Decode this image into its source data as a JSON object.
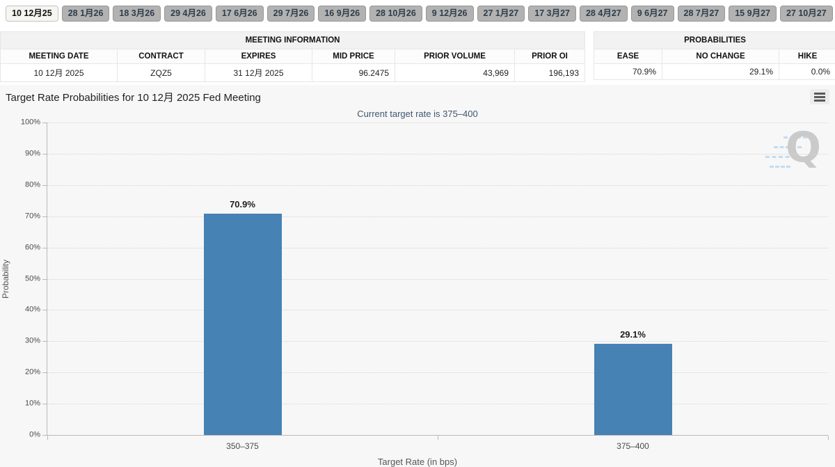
{
  "tabs": {
    "items": [
      {
        "label": "10 12月25",
        "active": true
      },
      {
        "label": "28 1月26",
        "active": false
      },
      {
        "label": "18 3月26",
        "active": false
      },
      {
        "label": "29 4月26",
        "active": false
      },
      {
        "label": "17 6月26",
        "active": false
      },
      {
        "label": "29 7月26",
        "active": false
      },
      {
        "label": "16 9月26",
        "active": false
      },
      {
        "label": "28 10月26",
        "active": false
      },
      {
        "label": "9 12月26",
        "active": false
      },
      {
        "label": "27 1月27",
        "active": false
      },
      {
        "label": "17 3月27",
        "active": false
      },
      {
        "label": "28 4月27",
        "active": false
      },
      {
        "label": "9 6月27",
        "active": false
      },
      {
        "label": "28 7月27",
        "active": false
      },
      {
        "label": "15 9月27",
        "active": false
      },
      {
        "label": "27 10月27",
        "active": false
      }
    ]
  },
  "meeting_info": {
    "title": "MEETING INFORMATION",
    "columns": [
      "MEETING DATE",
      "CONTRACT",
      "EXPIRES",
      "MID PRICE",
      "PRIOR VOLUME",
      "PRIOR OI"
    ],
    "row": {
      "meeting_date": "10 12月 2025",
      "contract": "ZQZ5",
      "expires": "31 12月 2025",
      "mid_price": "96.2475",
      "prior_volume": "43,969",
      "prior_oi": "196,193"
    }
  },
  "probabilities": {
    "title": "PROBABILITIES",
    "columns": [
      "EASE",
      "NO CHANGE",
      "HIKE"
    ],
    "row": {
      "ease": "70.9%",
      "no_change": "29.1%",
      "hike": "0.0%"
    }
  },
  "chart": {
    "menu_icon": "hamburger-menu-icon",
    "watermark": "Q"
  },
  "chart_data": {
    "type": "bar",
    "title": "Target Rate Probabilities for 10 12月 2025 Fed Meeting",
    "subtitle": "Current target rate is 375–400",
    "categories": [
      "350–375",
      "375–400"
    ],
    "values": [
      70.9,
      29.1
    ],
    "value_labels": [
      "70.9%",
      "29.1%"
    ],
    "xlabel": "Target Rate (in bps)",
    "ylabel": "Probability",
    "ylim": [
      0,
      100
    ],
    "ytick_step": 10,
    "ytick_suffix": "%",
    "grid": "horizontal-dotted",
    "legend": "none",
    "bar_color": "#4682B4",
    "background_color": "#f7f7f7",
    "subtitle_color": "#3E576F"
  }
}
